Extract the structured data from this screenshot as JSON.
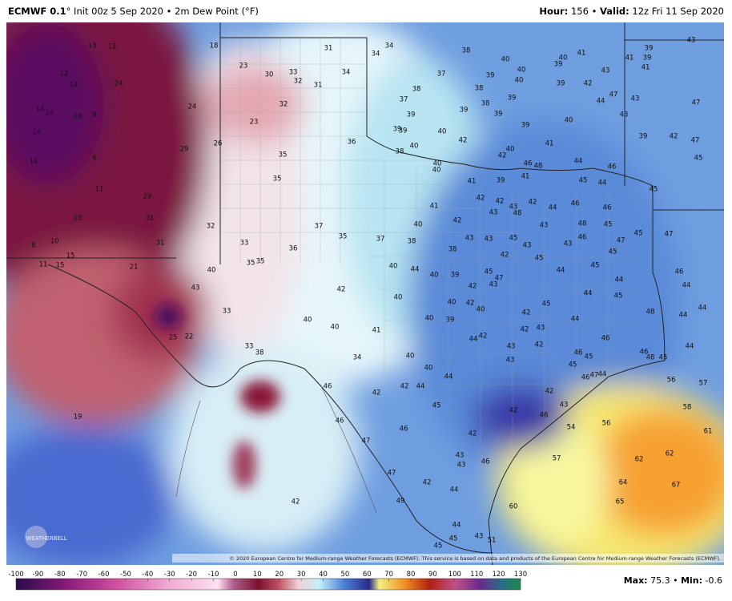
{
  "header": {
    "model": "ECMWF 0.1",
    "title": "° Init 00z 5 Sep 2020 • 2m Dew Point (°F)",
    "hour_label": "Hour:",
    "hour": " 156 • ",
    "valid_label": "Valid:",
    "valid": " 12z Fri 11 Sep 2020"
  },
  "map": {
    "labels": [
      13,
      12,
      18,
      12,
      14,
      24,
      14,
      14,
      16,
      9,
      24,
      14,
      29,
      26,
      14,
      6,
      11,
      29,
      13,
      31,
      32,
      8,
      10,
      31,
      15,
      11,
      15,
      21,
      23,
      30,
      33,
      32,
      31,
      34,
      31,
      34,
      34,
      32,
      23,
      36,
      35,
      35,
      37,
      35,
      37,
      38,
      33,
      36,
      35,
      35,
      40,
      43,
      33,
      25,
      22,
      33,
      38,
      42,
      40,
      40,
      41,
      34,
      40,
      44,
      40,
      40,
      40,
      42,
      44,
      44,
      45,
      42,
      46,
      46,
      47,
      46,
      47,
      42,
      49,
      42,
      19,
      38,
      37,
      40,
      40,
      40,
      39,
      39,
      40,
      41,
      39,
      43,
      42,
      38,
      38,
      37,
      38,
      39,
      39,
      39,
      39,
      40,
      47,
      44,
      43,
      43,
      39,
      39,
      39,
      40,
      42,
      40,
      38,
      41,
      40,
      42,
      46,
      48,
      44,
      46,
      40,
      40,
      41,
      39,
      41,
      45,
      44,
      39,
      39,
      41,
      41,
      43,
      47,
      39,
      42,
      47,
      45,
      45,
      42,
      42,
      43,
      43,
      48,
      42,
      44,
      46,
      46,
      41,
      42,
      40,
      43,
      43,
      45,
      43,
      43,
      48,
      45,
      45,
      47,
      45,
      47,
      42,
      45,
      46,
      43,
      38,
      44,
      45,
      40,
      39,
      42,
      47,
      43,
      45,
      44,
      44,
      45,
      40,
      42,
      40,
      46,
      44,
      44,
      44,
      48,
      42,
      42,
      43,
      44,
      45,
      40,
      39,
      44,
      42,
      43,
      42,
      46,
      46,
      45,
      45,
      43,
      46,
      48,
      45,
      44,
      47,
      44,
      46,
      42,
      43,
      42,
      46,
      54,
      56,
      57,
      42,
      43,
      43,
      46,
      44,
      60,
      62,
      62,
      64,
      65,
      67,
      56,
      57,
      58,
      61,
      44,
      45,
      43,
      51,
      45
    ],
    "copyright": "© 2020 European Centre for Medium-range Weather Forecasts (ECMWF). This service is based on data and products of the European Centre for Medium-range Weather Forecasts (ECMWF).",
    "logo": "WEATHERBELL"
  },
  "colorbar": {
    "ticks": [
      -100,
      -90,
      -80,
      -70,
      -60,
      -50,
      -40,
      -30,
      -20,
      -10,
      0,
      10,
      20,
      30,
      40,
      50,
      60,
      70,
      80,
      90,
      100,
      110,
      120,
      130
    ]
  },
  "footer": {
    "max_label": "Max:",
    "max": " 75.3 • ",
    "min_label": "Min:",
    "min": " -0.6"
  }
}
